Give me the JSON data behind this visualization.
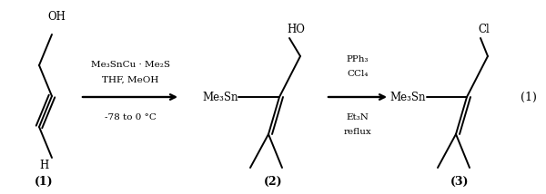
{
  "background_color": "#ffffff",
  "figsize": [
    6.0,
    2.14
  ],
  "dpi": 100,
  "font_size_labels": 8.5,
  "font_size_compound_labels": 9,
  "font_size_arrow_text": 7.5,
  "font_size_eq": 9,
  "line_width": 1.4,
  "compound1": {
    "label": "(1)",
    "OH": "OH",
    "H": "H"
  },
  "arrow1": {
    "label_above1": "Me₃SnCu · Me₂S",
    "label_above2": "THF, MeOH",
    "label_below": "-78 to 0 °C"
  },
  "compound2": {
    "label": "(2)",
    "HO": "HO",
    "Me3Sn": "Me₃Sn"
  },
  "arrow2": {
    "label_above1": "PPh₃",
    "label_above2": "CCl₄",
    "label_below1": "Et₃N",
    "label_below2": "reflux"
  },
  "compound3": {
    "label": "(3)",
    "Cl": "Cl",
    "Me3Sn": "Me₃Sn"
  },
  "equation_number": "(1)"
}
